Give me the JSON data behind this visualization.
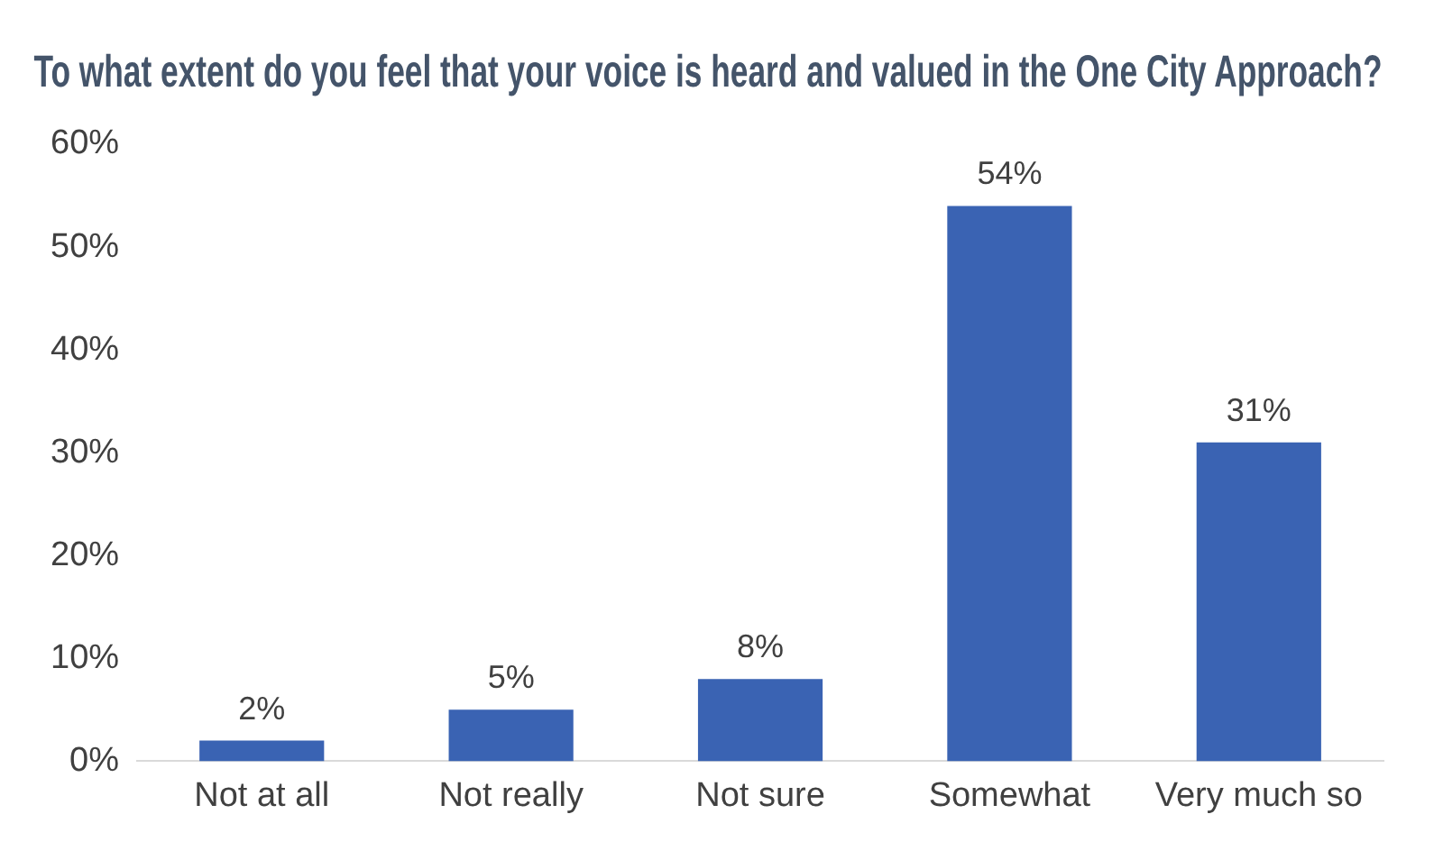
{
  "chart_data": {
    "type": "bar",
    "title": "To what extent do you feel that your voice is heard and valued in the One City Approach?",
    "categories": [
      "Not at all",
      "Not really",
      "Not sure",
      "Somewhat",
      "Very much so"
    ],
    "values": [
      2,
      5,
      8,
      54,
      31
    ],
    "value_labels": [
      "2%",
      "5%",
      "8%",
      "54%",
      "31%"
    ],
    "color": "#3a63b3",
    "ylim": [
      0,
      60
    ],
    "yticks": [
      {
        "value": 0,
        "label": "0%"
      },
      {
        "value": 10,
        "label": "10%"
      },
      {
        "value": 20,
        "label": "20%"
      },
      {
        "value": 30,
        "label": "30%"
      },
      {
        "value": 40,
        "label": "40%"
      },
      {
        "value": 50,
        "label": "50%"
      },
      {
        "value": 60,
        "label": "60%"
      }
    ],
    "grid": false,
    "legend": false
  }
}
